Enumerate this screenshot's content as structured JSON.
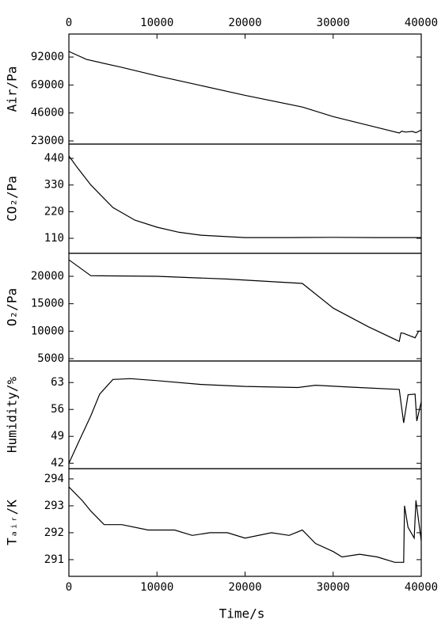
{
  "chart_data": [
    {
      "type": "line",
      "ylabel": "Air/Pa",
      "color": "#000000",
      "xlim": [
        0,
        40000
      ],
      "xticks": [
        0,
        10000,
        20000,
        30000,
        40000
      ],
      "ylim": [
        20400,
        110900
      ],
      "yticks": [
        23000,
        46000,
        69000,
        92000
      ],
      "x": [
        0,
        2000,
        6000,
        10000,
        15000,
        20000,
        26500,
        30000,
        35000,
        37500,
        37800,
        38200,
        39000,
        39400,
        40000
      ],
      "values": [
        96600,
        90000,
        83500,
        76500,
        68500,
        60500,
        50900,
        43000,
        34000,
        29500,
        31000,
        30300,
        30800,
        29800,
        32000
      ]
    },
    {
      "type": "line",
      "ylabel": "CO₂/Pa",
      "color": "#000000",
      "xlim": [
        0,
        40000
      ],
      "ylim": [
        48,
        499
      ],
      "yticks": [
        110,
        220,
        330,
        440
      ],
      "x": [
        0,
        1000,
        2500,
        5000,
        7500,
        10000,
        12500,
        15000,
        20000,
        25000,
        30000,
        35000,
        40000
      ],
      "values": [
        450,
        400,
        330,
        237,
        185,
        156,
        135,
        123,
        113,
        113,
        114,
        113,
        113
      ]
    },
    {
      "type": "line",
      "ylabel": "O₂/Pa",
      "color": "#000000",
      "xlim": [
        0,
        40000
      ],
      "ylim": [
        4570,
        24180
      ],
      "yticks": [
        5000,
        10000,
        15000,
        20000
      ],
      "x": [
        0,
        2500,
        10000,
        18000,
        26500,
        30000,
        34000,
        37500,
        37700,
        38000,
        39300,
        39700,
        40000
      ],
      "values": [
        23000,
        20100,
        20000,
        19500,
        18700,
        14200,
        10800,
        8150,
        9700,
        9600,
        8800,
        10000,
        10000
      ]
    },
    {
      "type": "line",
      "ylabel": "Humidity/%",
      "color": "#000000",
      "xlim": [
        0,
        40000
      ],
      "ylim": [
        40.6,
        68.6
      ],
      "yticks": [
        42,
        49,
        56,
        63
      ],
      "x": [
        0,
        1000,
        2500,
        3500,
        5000,
        7000,
        10000,
        15000,
        20000,
        26000,
        28000,
        32000,
        37500,
        38000,
        38500,
        39300,
        39500,
        40000
      ],
      "values": [
        42,
        47,
        54.4,
        60,
        63.8,
        64,
        63.5,
        62.5,
        62,
        61.7,
        62.3,
        61.8,
        61.2,
        52.5,
        59.8,
        60,
        53,
        58
      ]
    },
    {
      "type": "line",
      "ylabel": "Tₐᵢᵣ/K",
      "color": "#000000",
      "xlim": [
        0,
        40000
      ],
      "xticks": [
        0,
        10000,
        20000,
        30000,
        40000
      ],
      "xlabel": "Time/s",
      "ylim": [
        290.38,
        294.38
      ],
      "yticks": [
        291,
        292,
        293,
        294
      ],
      "x": [
        0,
        1500,
        2500,
        4000,
        6000,
        9000,
        12000,
        14000,
        16000,
        18000,
        20000,
        23000,
        25000,
        26500,
        28000,
        30000,
        31000,
        33000,
        35000,
        37000,
        38000,
        38100,
        38500,
        39200,
        39400,
        40000
      ],
      "values": [
        293.7,
        293.2,
        292.8,
        292.3,
        292.3,
        292.1,
        292.1,
        291.9,
        292,
        292,
        291.8,
        292,
        291.9,
        292.1,
        291.6,
        291.3,
        291.1,
        291.2,
        291.1,
        290.9,
        290.9,
        293,
        292.2,
        291.8,
        293.2,
        291.7
      ]
    }
  ]
}
